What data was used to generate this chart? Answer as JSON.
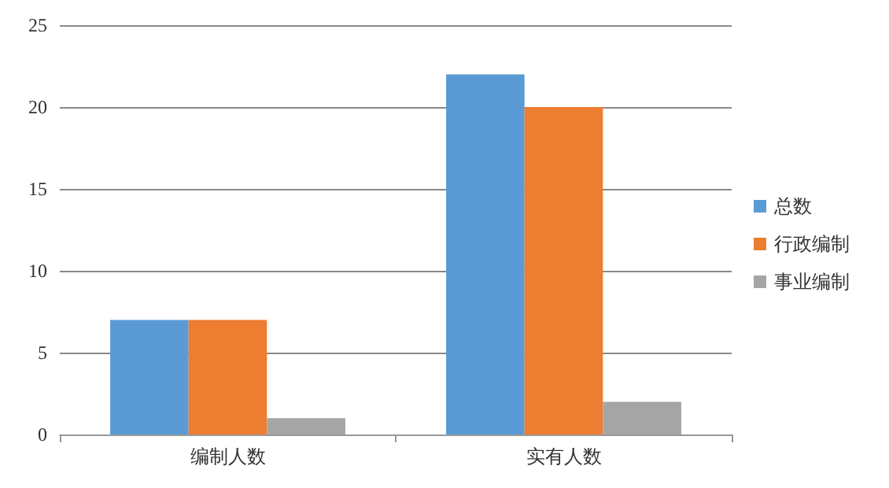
{
  "chart_data": {
    "type": "bar",
    "categories": [
      "编制人数",
      "实有人数"
    ],
    "series": [
      {
        "name": "总数",
        "color": "#5b9bd5",
        "values": [
          7,
          22
        ]
      },
      {
        "name": "行政编制",
        "color": "#ed7d31",
        "values": [
          7,
          20
        ]
      },
      {
        "name": "事业编制",
        "color": "#a5a5a5",
        "values": [
          1,
          2
        ]
      }
    ],
    "ylim": [
      0,
      25
    ],
    "yticks": [
      0,
      5,
      10,
      15,
      20,
      25
    ],
    "grid": "y",
    "legend": "right"
  }
}
